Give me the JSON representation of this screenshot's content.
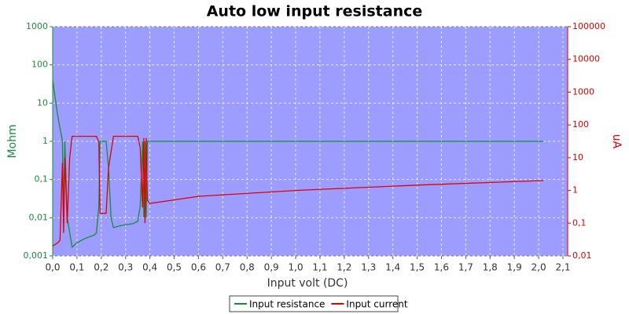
{
  "chart_data": {
    "type": "line",
    "title": "Auto low input resistance",
    "x_label": "Input volt (DC)",
    "y_label": "Mohm",
    "y2_label": "uA",
    "xlim": [
      0,
      2.1
    ],
    "xticks": [
      {
        "value": 0,
        "label": "0,0"
      },
      {
        "value": 0.1,
        "label": "0,1"
      },
      {
        "value": 0.2,
        "label": "0,2"
      },
      {
        "value": 0.3,
        "label": "0,3"
      },
      {
        "value": 0.4,
        "label": "0,4"
      },
      {
        "value": 0.5,
        "label": "0,5"
      },
      {
        "value": 0.6,
        "label": "0,6"
      },
      {
        "value": 0.7,
        "label": "0,7"
      },
      {
        "value": 0.8,
        "label": "0,8"
      },
      {
        "value": 0.9,
        "label": "0,9"
      },
      {
        "value": 1.0,
        "label": "1,0"
      },
      {
        "value": 1.1,
        "label": "1,1"
      },
      {
        "value": 1.2,
        "label": "1,2"
      },
      {
        "value": 1.3,
        "label": "1,3"
      },
      {
        "value": 1.4,
        "label": "1,4"
      },
      {
        "value": 1.5,
        "label": "1,5"
      },
      {
        "value": 1.6,
        "label": "1,6"
      },
      {
        "value": 1.7,
        "label": "1,7"
      },
      {
        "value": 1.8,
        "label": "1,8"
      },
      {
        "value": 1.9,
        "label": "1,9"
      },
      {
        "value": 2.0,
        "label": "2,0"
      },
      {
        "value": 2.1,
        "label": "2,1"
      }
    ],
    "ylog": true,
    "ylim": [
      0.001,
      1000
    ],
    "yticks": [
      {
        "value": 0.001,
        "label": "0,001"
      },
      {
        "value": 0.01,
        "label": "0,01"
      },
      {
        "value": 0.1,
        "label": "0,1"
      },
      1,
      10,
      100,
      1000
    ],
    "y2log": true,
    "y2lim": [
      0.01,
      100000
    ],
    "y2ticks": [
      {
        "value": 0.01,
        "label": "0,01"
      },
      {
        "value": 0.1,
        "label": "0,1"
      },
      1,
      10,
      100,
      1000,
      10000,
      100000
    ],
    "grid": true,
    "legend": "bottom",
    "series": [
      {
        "name": "Input resistance",
        "color": "#1a8a3a",
        "axis": "y",
        "x": [
          0,
          0.02,
          0.04,
          0.045,
          0.05,
          0.06,
          0.08,
          0.1,
          0.13,
          0.17,
          0.18,
          0.19,
          0.195,
          0.22,
          0.23,
          0.24,
          0.25,
          0.28,
          0.33,
          0.35,
          0.36,
          0.37,
          0.375,
          0.38,
          0.385,
          0.39,
          0.4,
          1.0,
          1.5,
          2.02
        ],
        "values": [
          40,
          5,
          1,
          0.01,
          1,
          0.01,
          0.0017,
          0.0022,
          0.0028,
          0.0035,
          0.004,
          0.02,
          1,
          1,
          0.2,
          0.01,
          0.0055,
          0.0062,
          0.007,
          0.008,
          0.02,
          1,
          0.01,
          1,
          0.01,
          1,
          1,
          1,
          1,
          1
        ]
      },
      {
        "name": "Input current",
        "color": "#e00000",
        "axis": "y2",
        "x": [
          0,
          0.02,
          0.03,
          0.04,
          0.045,
          0.05,
          0.06,
          0.07,
          0.08,
          0.1,
          0.18,
          0.19,
          0.195,
          0.22,
          0.23,
          0.25,
          0.35,
          0.36,
          0.37,
          0.375,
          0.38,
          0.385,
          0.39,
          0.4,
          0.6,
          1.0,
          1.5,
          2.02
        ],
        "values": [
          0.02,
          0.025,
          0.03,
          7,
          0.05,
          10,
          0.1,
          10,
          45,
          45,
          45,
          30,
          0.2,
          0.2,
          5,
          45,
          45,
          20,
          0.3,
          40,
          0.1,
          40,
          0.5,
          0.4,
          0.66,
          1.0,
          1.45,
          2.0
        ]
      }
    ]
  }
}
